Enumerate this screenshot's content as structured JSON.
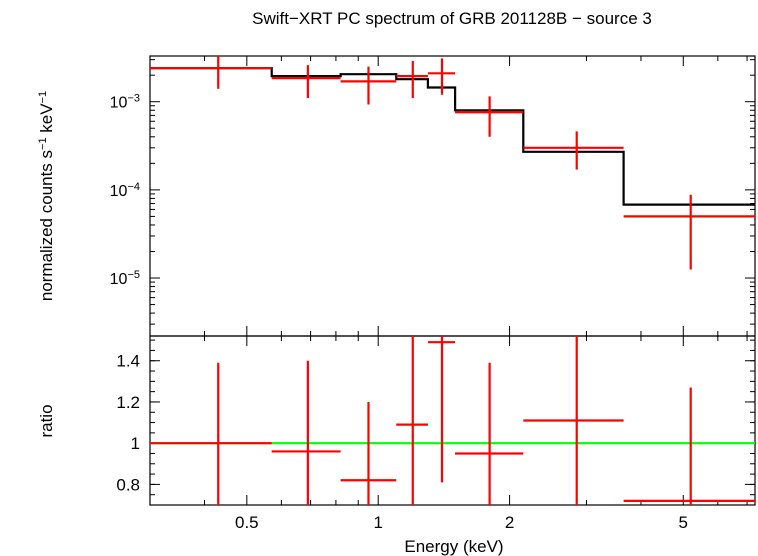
{
  "chart_data": {
    "type": "scatter",
    "title": "Swift−XRT PC spectrum of GRB 201128B − source 3",
    "xlabel": "Energy (keV)",
    "xscale": "log",
    "xlim": [
      0.3,
      7.3
    ],
    "x_ticks": [
      {
        "value": 0.5,
        "label": "0.5"
      },
      {
        "value": 1,
        "label": "1"
      },
      {
        "value": 2,
        "label": "2"
      },
      {
        "value": 5,
        "label": "5"
      }
    ],
    "colors": {
      "data": "#ff0000",
      "model": "#000000",
      "unity": "#00ff00",
      "frame": "#000000"
    },
    "spectrum": {
      "ylabel_parts": {
        "main": "normalized counts s",
        "exp1": "−1",
        "unit": " keV",
        "exp2": "−1"
      },
      "yscale": "log",
      "ylim": [
        2.2e-06,
        0.0033
      ],
      "y_ticks": [
        {
          "value": 0.001,
          "base": "10",
          "exp": "−3"
        },
        {
          "value": 0.0001,
          "base": "10",
          "exp": "−4"
        },
        {
          "value": 1e-05,
          "base": "10",
          "exp": "−5"
        }
      ],
      "data": [
        {
          "x": 0.43,
          "xlo": 0.3,
          "xhi": 0.57,
          "y": 0.0024,
          "ylo": 0.0014,
          "yhi": 0.0033
        },
        {
          "x": 0.69,
          "xlo": 0.57,
          "xhi": 0.82,
          "y": 0.00185,
          "ylo": 0.0011,
          "yhi": 0.0026
        },
        {
          "x": 0.95,
          "xlo": 0.82,
          "xhi": 1.1,
          "y": 0.0017,
          "ylo": 0.00093,
          "yhi": 0.0025
        },
        {
          "x": 1.2,
          "xlo": 1.1,
          "xhi": 1.3,
          "y": 0.00195,
          "ylo": 0.0011,
          "yhi": 0.0029
        },
        {
          "x": 1.4,
          "xlo": 1.3,
          "xhi": 1.5,
          "y": 0.0021,
          "ylo": 0.0012,
          "yhi": 0.0031
        },
        {
          "x": 1.8,
          "xlo": 1.5,
          "xhi": 2.15,
          "y": 0.00076,
          "ylo": 0.0004,
          "yhi": 0.00115
        },
        {
          "x": 2.85,
          "xlo": 2.15,
          "xhi": 3.65,
          "y": 0.0003,
          "ylo": 0.00017,
          "yhi": 0.00046
        },
        {
          "x": 5.2,
          "xlo": 3.65,
          "xhi": 7.3,
          "y": 5e-05,
          "ylo": 1.25e-05,
          "yhi": 8.8e-05
        }
      ],
      "model": [
        {
          "xlo": 0.3,
          "xhi": 0.57,
          "y": 0.0024
        },
        {
          "xlo": 0.57,
          "xhi": 0.82,
          "y": 0.00195
        },
        {
          "xlo": 0.82,
          "xhi": 1.1,
          "y": 0.00205
        },
        {
          "xlo": 1.1,
          "xhi": 1.3,
          "y": 0.0018
        },
        {
          "xlo": 1.3,
          "xhi": 1.5,
          "y": 0.00145
        },
        {
          "xlo": 1.5,
          "xhi": 2.15,
          "y": 0.0008
        },
        {
          "xlo": 2.15,
          "xhi": 3.65,
          "y": 0.00027
        },
        {
          "xlo": 3.65,
          "xhi": 7.3,
          "y": 6.8e-05
        }
      ]
    },
    "ratio": {
      "ylabel": "ratio",
      "ylim": [
        0.7,
        1.52
      ],
      "y_ticks": [
        {
          "value": 0.8,
          "label": "0.8"
        },
        {
          "value": 1,
          "label": "1"
        },
        {
          "value": 1.2,
          "label": "1.2"
        },
        {
          "value": 1.4,
          "label": "1.4"
        }
      ],
      "reference": 1,
      "data": [
        {
          "x": 0.43,
          "xlo": 0.3,
          "xhi": 0.57,
          "y": 1.0,
          "ylo": 0.7,
          "yhi": 1.39
        },
        {
          "x": 0.69,
          "xlo": 0.57,
          "xhi": 0.82,
          "y": 0.96,
          "ylo": 0.7,
          "yhi": 1.4
        },
        {
          "x": 0.95,
          "xlo": 0.82,
          "xhi": 1.1,
          "y": 0.82,
          "ylo": 0.7,
          "yhi": 1.2
        },
        {
          "x": 1.2,
          "xlo": 1.1,
          "xhi": 1.3,
          "y": 1.09,
          "ylo": 0.7,
          "yhi": 1.52
        },
        {
          "x": 1.4,
          "xlo": 1.3,
          "xhi": 1.5,
          "y": 1.49,
          "ylo": 0.81,
          "yhi": 1.52
        },
        {
          "x": 1.8,
          "xlo": 1.5,
          "xhi": 2.15,
          "y": 0.95,
          "ylo": 0.7,
          "yhi": 1.39
        },
        {
          "x": 2.85,
          "xlo": 2.15,
          "xhi": 3.65,
          "y": 1.11,
          "ylo": 0.7,
          "yhi": 1.52
        },
        {
          "x": 5.2,
          "xlo": 3.65,
          "xhi": 7.3,
          "y": 0.72,
          "ylo": 0.7,
          "yhi": 1.27
        }
      ]
    }
  }
}
